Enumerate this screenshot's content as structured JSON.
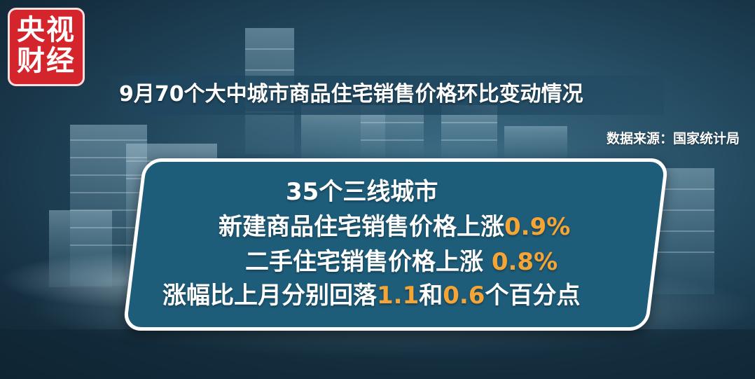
{
  "logo": {
    "line1": "央视",
    "line2": "财经"
  },
  "title": "9月70个大中城市商品住宅销售价格环比变动情况",
  "source": "数据来源：国家统计局",
  "panel": {
    "line1": "35个三线城市",
    "line2_text": "新建商品住宅销售价格上涨",
    "line2_value": "0.9%",
    "line3_text": "二手住宅销售价格上涨 ",
    "line3_value": "0.8%",
    "line4_text_a": "涨幅比上月分别回落",
    "line4_value_a": "1.1",
    "line4_text_b": "和",
    "line4_value_b": "0.6",
    "line4_text_c": "个百分点"
  },
  "colors": {
    "logo_red": "#d4252c",
    "panel_teal": "#1e5d7a",
    "highlight_orange": "#f4a535"
  }
}
